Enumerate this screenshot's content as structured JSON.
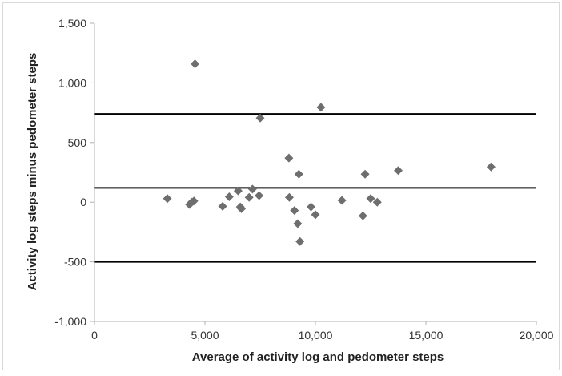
{
  "chart_data": {
    "type": "scatter",
    "xlabel": "Average of activity log and pedometer steps",
    "ylabel": "Activity log steps minus pedometer steps",
    "xlim": [
      0,
      20000
    ],
    "ylim": [
      -1000,
      1500
    ],
    "x_ticks": [
      "0",
      "5,000",
      "10,000",
      "15,000",
      "20,000"
    ],
    "y_ticks": [
      "1,500",
      "1,000",
      "500",
      "0",
      "-500",
      "-1,000"
    ],
    "x_tick_values": [
      0,
      5000,
      10000,
      15000,
      20000
    ],
    "y_tick_values": [
      1500,
      1000,
      500,
      0,
      -500,
      -1000
    ],
    "grid": false,
    "reference_lines": [
      740,
      120,
      -500
    ],
    "marker_color": "#6e6e6e",
    "line_color": "#000000",
    "series": [
      {
        "x": [
          3300,
          4300,
          4400,
          4500,
          4550,
          5800,
          6100,
          6500,
          6600,
          6650,
          7000,
          7150,
          7450,
          7500,
          8800,
          8820,
          9050,
          9200,
          9250,
          9300,
          9800,
          10000,
          10250,
          11200,
          12150,
          12250,
          12500,
          12800,
          13750,
          17950
        ],
        "y": [
          30,
          -20,
          0,
          10,
          1160,
          -35,
          45,
          95,
          -40,
          -55,
          40,
          110,
          55,
          705,
          370,
          40,
          -70,
          -180,
          235,
          -330,
          -40,
          -105,
          795,
          15,
          -115,
          235,
          30,
          0,
          265,
          295
        ]
      }
    ]
  }
}
